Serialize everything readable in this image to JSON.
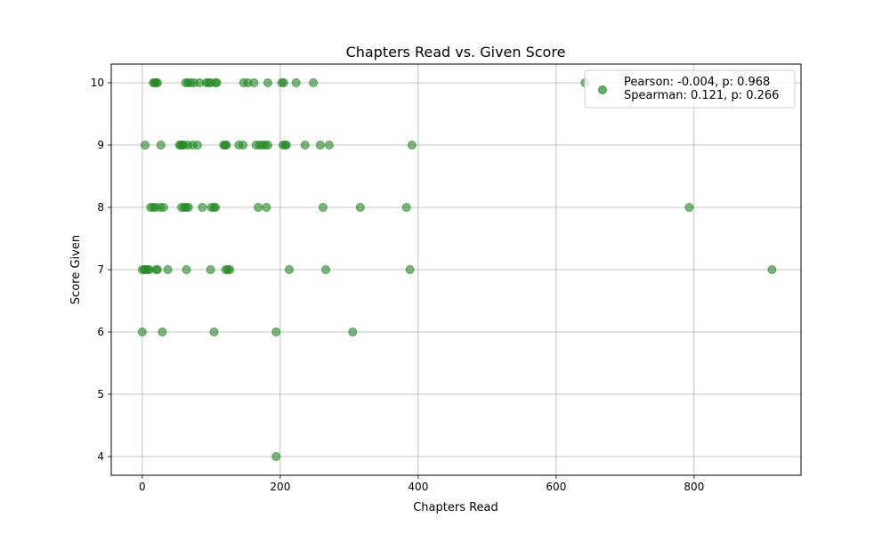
{
  "chart_data": {
    "type": "scatter",
    "title": "Chapters Read vs. Given Score",
    "xlabel": "Chapters Read",
    "ylabel": "Score Given",
    "xlim": [
      -45,
      955
    ],
    "ylim": [
      3.7,
      10.3
    ],
    "xticks": [
      0,
      200,
      400,
      600,
      800
    ],
    "yticks": [
      4,
      5,
      6,
      7,
      8,
      9,
      10
    ],
    "grid": true,
    "legend_placement": "top-right",
    "series": [
      {
        "name": "Pearson: -0.004, p: 0.968\nSpearman: 0.121, p: 0.266",
        "color": "#228b22",
        "points": [
          [
            642,
            10
          ],
          [
            16,
            10
          ],
          [
            18,
            10
          ],
          [
            20,
            10
          ],
          [
            22,
            10
          ],
          [
            63,
            10
          ],
          [
            66,
            10
          ],
          [
            70,
            10
          ],
          [
            75,
            10
          ],
          [
            83,
            10
          ],
          [
            93,
            10
          ],
          [
            96,
            10
          ],
          [
            99,
            10
          ],
          [
            106,
            10
          ],
          [
            108,
            10
          ],
          [
            147,
            10
          ],
          [
            153,
            10
          ],
          [
            162,
            10
          ],
          [
            182,
            10
          ],
          [
            202,
            10
          ],
          [
            205,
            10
          ],
          [
            223,
            10
          ],
          [
            248,
            10
          ],
          [
            4,
            9
          ],
          [
            27,
            9
          ],
          [
            54,
            9
          ],
          [
            56,
            9
          ],
          [
            58,
            9
          ],
          [
            60,
            9
          ],
          [
            66,
            9
          ],
          [
            73,
            9
          ],
          [
            80,
            9
          ],
          [
            118,
            9
          ],
          [
            120,
            9
          ],
          [
            122,
            9
          ],
          [
            140,
            9
          ],
          [
            146,
            9
          ],
          [
            165,
            9
          ],
          [
            170,
            9
          ],
          [
            174,
            9
          ],
          [
            178,
            9
          ],
          [
            182,
            9
          ],
          [
            204,
            9
          ],
          [
            207,
            9
          ],
          [
            209,
            9
          ],
          [
            236,
            9
          ],
          [
            258,
            9
          ],
          [
            271,
            9
          ],
          [
            391,
            9
          ],
          [
            12,
            8
          ],
          [
            16,
            8
          ],
          [
            19,
            8
          ],
          [
            26,
            8
          ],
          [
            31,
            8
          ],
          [
            57,
            8
          ],
          [
            61,
            8
          ],
          [
            64,
            8
          ],
          [
            67,
            8
          ],
          [
            87,
            8
          ],
          [
            100,
            8
          ],
          [
            104,
            8
          ],
          [
            106,
            8
          ],
          [
            168,
            8
          ],
          [
            180,
            8
          ],
          [
            262,
            8
          ],
          [
            316,
            8
          ],
          [
            383,
            8
          ],
          [
            793,
            8
          ],
          [
            0,
            7
          ],
          [
            3,
            7
          ],
          [
            5,
            7
          ],
          [
            8,
            7
          ],
          [
            10,
            7
          ],
          [
            20,
            7
          ],
          [
            22,
            7
          ],
          [
            37,
            7
          ],
          [
            64,
            7
          ],
          [
            99,
            7
          ],
          [
            121,
            7
          ],
          [
            124,
            7
          ],
          [
            127,
            7
          ],
          [
            213,
            7
          ],
          [
            266,
            7
          ],
          [
            388,
            7
          ],
          [
            913,
            7
          ],
          [
            0,
            6
          ],
          [
            29,
            6
          ],
          [
            104,
            6
          ],
          [
            194,
            6
          ],
          [
            305,
            6
          ],
          [
            194,
            4
          ]
        ]
      }
    ]
  }
}
